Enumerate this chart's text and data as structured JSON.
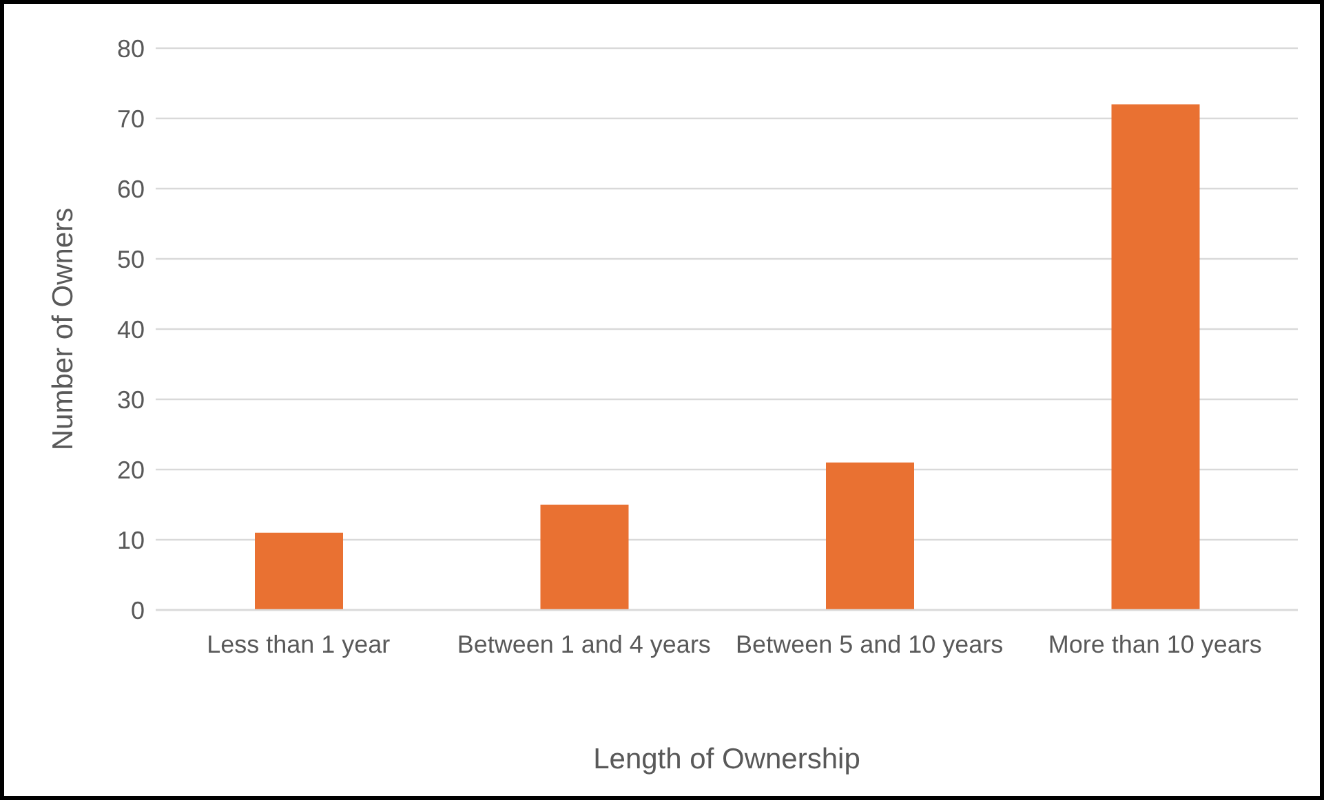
{
  "chart_data": {
    "type": "bar",
    "xlabel": "Length of Ownership",
    "ylabel": "Number of Owners",
    "categories": [
      "Less than 1 year",
      "Between 1 and 4 years",
      "Between 5 and 10 years",
      "More than 10 years"
    ],
    "values": [
      11,
      15,
      21,
      72
    ],
    "color": "#e97132",
    "ylim": [
      0,
      80
    ],
    "yticks": [
      0,
      10,
      20,
      30,
      40,
      50,
      60,
      70,
      80
    ],
    "grid": "y",
    "legend": false
  }
}
